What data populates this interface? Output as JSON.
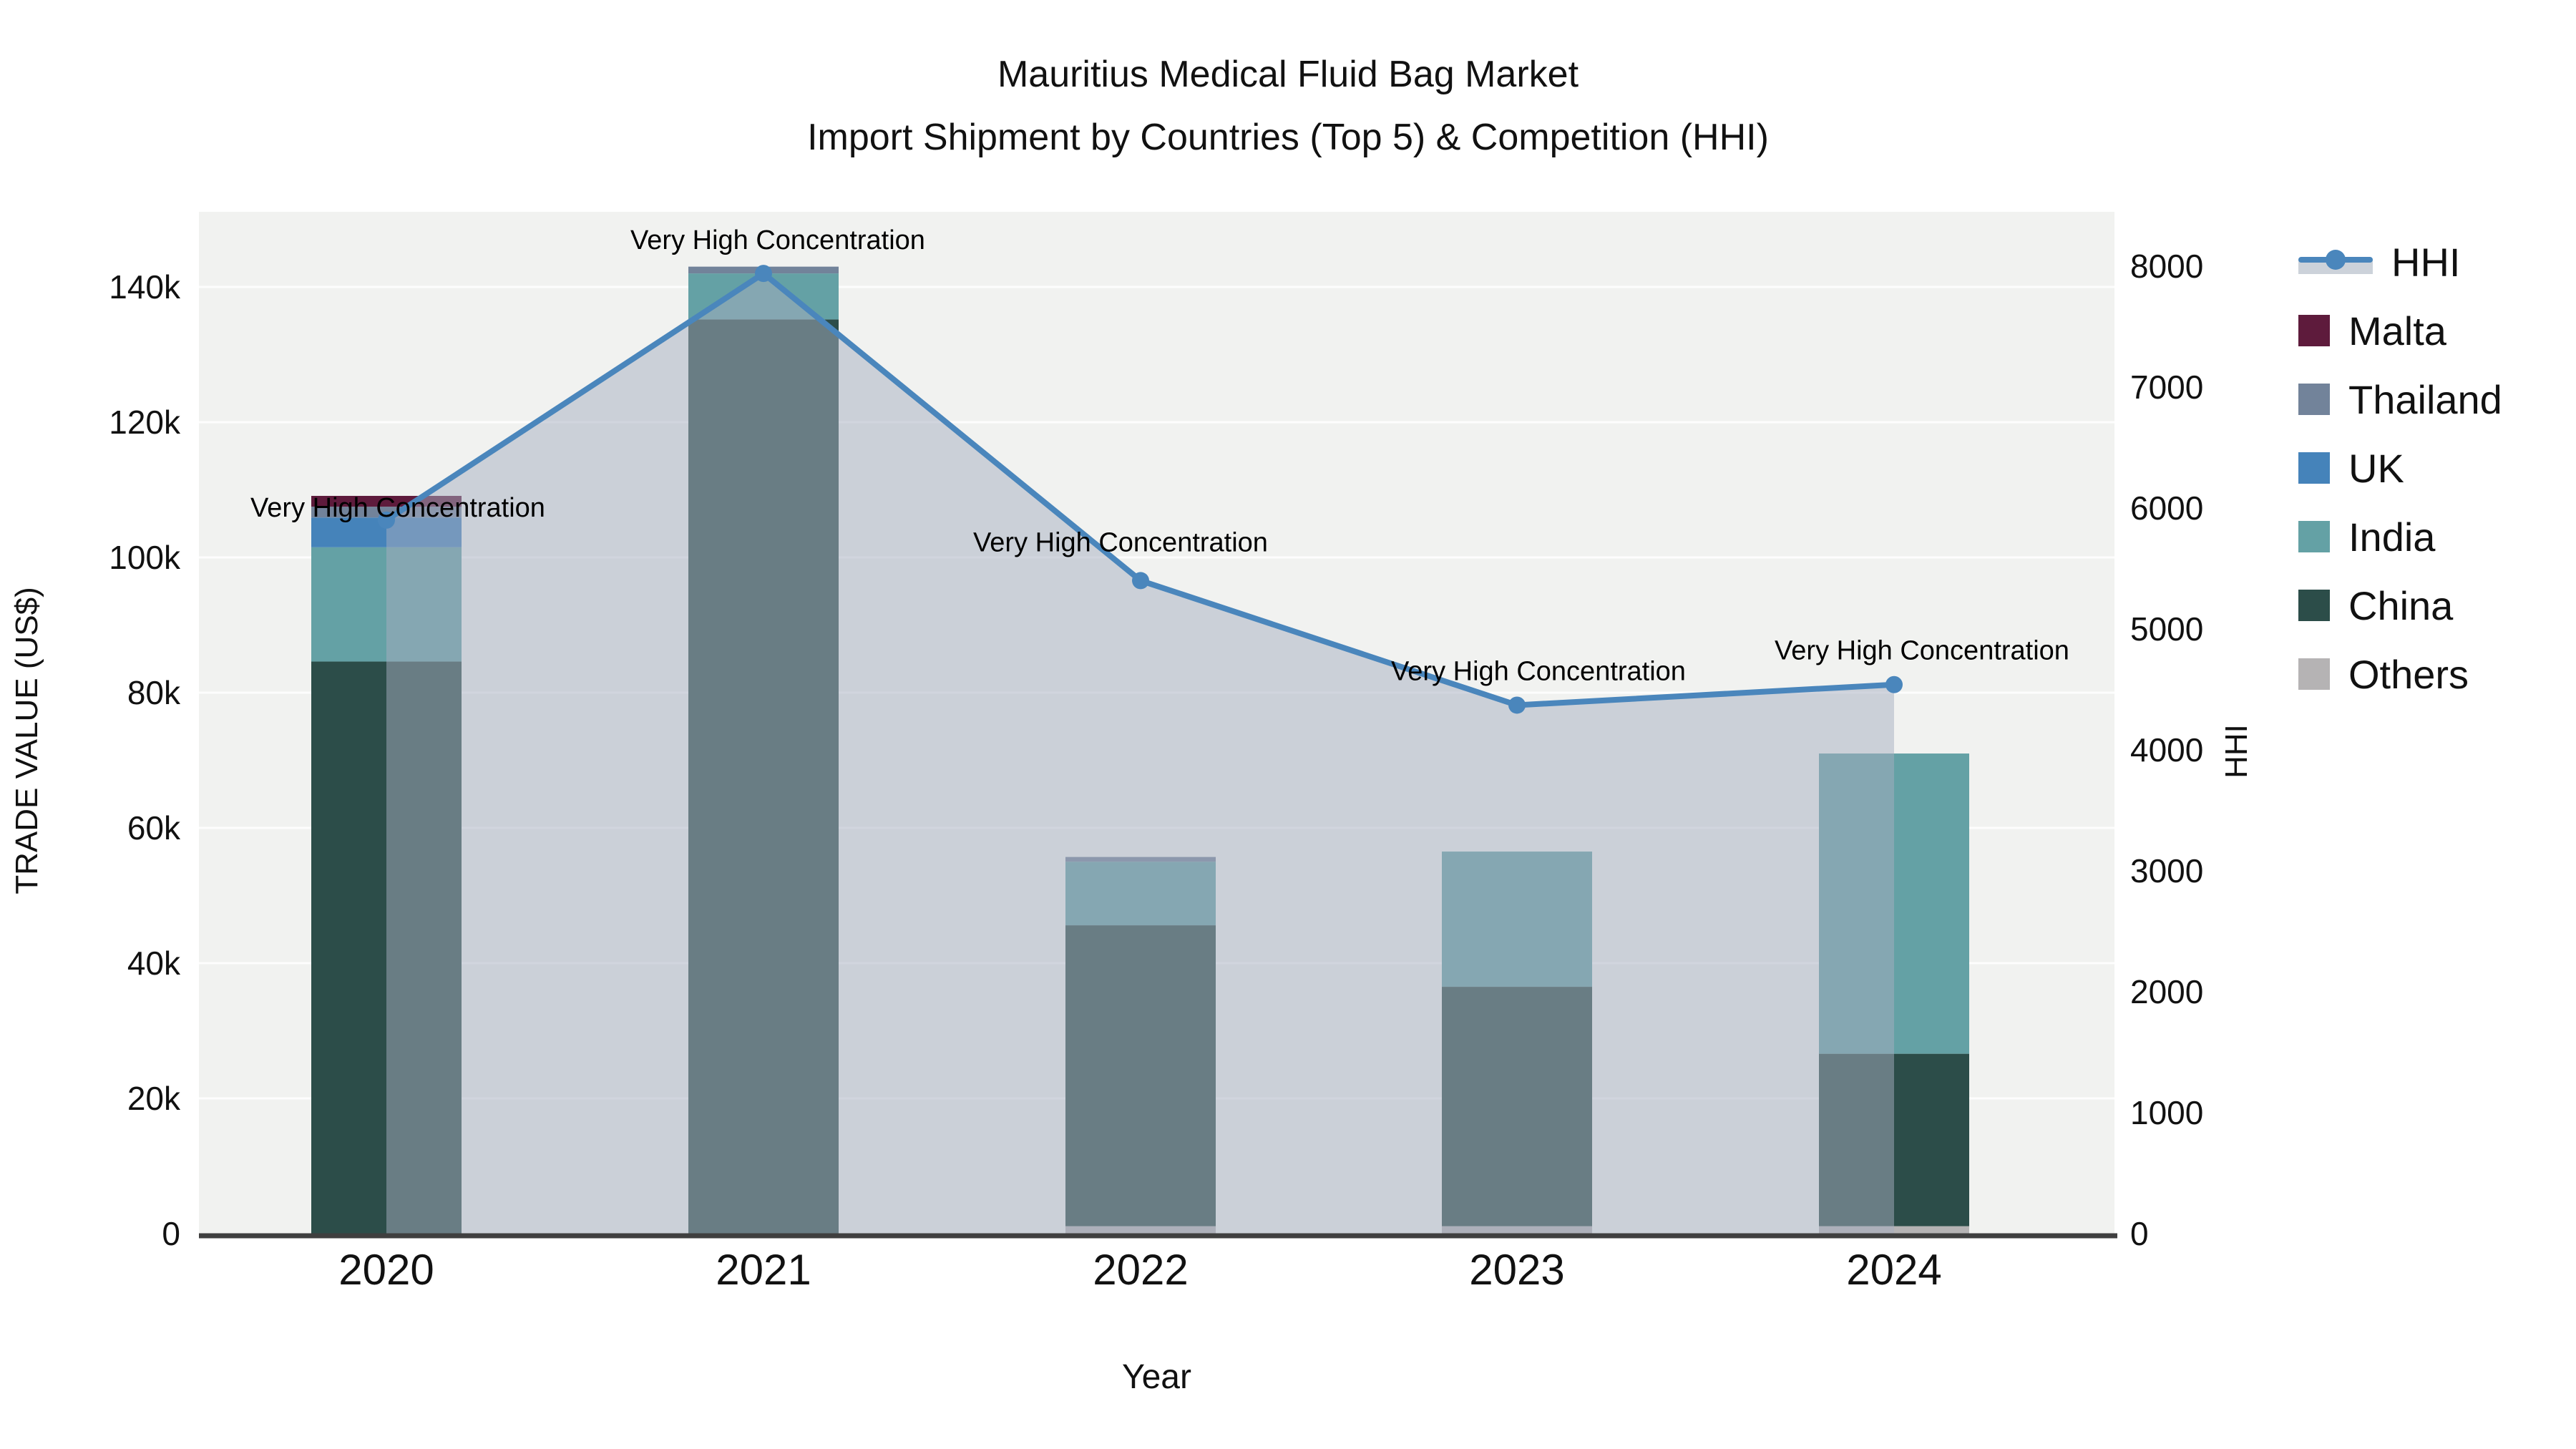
{
  "title": {
    "line1": "Mauritius Medical Fluid Bag Market",
    "line2": "Import Shipment by Countries (Top 5) & Competition (HHI)"
  },
  "axes": {
    "x": {
      "title": "Year",
      "tick_labels": [
        "2020",
        "2021",
        "2022",
        "2023",
        "2024"
      ]
    },
    "y_left": {
      "title": "TRADE VALUE (US$)",
      "tick_labels": [
        "0",
        "20k",
        "40k",
        "60k",
        "80k",
        "100k",
        "120k",
        "140k"
      ],
      "tick_values": [
        0,
        20000,
        40000,
        60000,
        80000,
        100000,
        120000,
        140000
      ]
    },
    "y_right": {
      "title": "HHI",
      "tick_labels": [
        "0",
        "1000",
        "2000",
        "3000",
        "4000",
        "5000",
        "6000",
        "7000",
        "8000"
      ],
      "tick_values": [
        0,
        1000,
        2000,
        3000,
        4000,
        5000,
        6000,
        7000,
        8000
      ]
    }
  },
  "legend": {
    "items": [
      {
        "id": "hhi",
        "label": "HHI",
        "type": "line",
        "color": "#4a86bc"
      },
      {
        "id": "malta",
        "label": "Malta",
        "type": "box",
        "color": "#5e1b3c"
      },
      {
        "id": "thailand",
        "label": "Thailand",
        "type": "box",
        "color": "#72839a"
      },
      {
        "id": "uk",
        "label": "UK",
        "type": "box",
        "color": "#4583ba"
      },
      {
        "id": "india",
        "label": "India",
        "type": "box",
        "color": "#64a1a5"
      },
      {
        "id": "china",
        "label": "China",
        "type": "box",
        "color": "#2c4d49"
      },
      {
        "id": "others",
        "label": "Others",
        "type": "box",
        "color": "#b5b3b4"
      }
    ]
  },
  "chart_data": {
    "type": "stacked-bar-with-line",
    "categories": [
      "2020",
      "2021",
      "2022",
      "2023",
      "2024"
    ],
    "bar_series": [
      {
        "name": "Others",
        "color": "#b5b3b4",
        "values": [
          0,
          0,
          1100,
          1100,
          1100
        ]
      },
      {
        "name": "China",
        "color": "#2c4d49",
        "values": [
          84600,
          135200,
          44500,
          35400,
          25500
        ]
      },
      {
        "name": "India",
        "color": "#64a1a5",
        "values": [
          16900,
          6800,
          9400,
          20000,
          44400
        ]
      },
      {
        "name": "UK",
        "color": "#4583ba",
        "values": [
          4400,
          0,
          0,
          0,
          0
        ]
      },
      {
        "name": "Thailand",
        "color": "#72839a",
        "values": [
          1600,
          1000,
          700,
          0,
          0
        ]
      },
      {
        "name": "Malta",
        "color": "#5e1b3c",
        "values": [
          1600,
          0,
          0,
          0,
          0
        ]
      }
    ],
    "line_series": {
      "name": "HHI",
      "color": "#4a86bc",
      "fill_color": "rgba(165,174,192,0.5)",
      "values": [
        5900,
        7940,
        5400,
        4370,
        4540
      ]
    },
    "annotations": [
      {
        "text": "Very High Concentration",
        "category": "2020"
      },
      {
        "text": "Very High Concentration",
        "category": "2021"
      },
      {
        "text": "Very High Concentration",
        "category": "2022"
      },
      {
        "text": "Very High Concentration",
        "category": "2023"
      },
      {
        "text": "Very High Concentration",
        "category": "2024"
      }
    ],
    "xlabel": "Year",
    "ylabel_left": "TRADE VALUE (US$)",
    "ylabel_right": "HHI",
    "ylim_left": [
      0,
      151000
    ],
    "ylim_right": [
      0,
      8540
    ],
    "grid": true,
    "legend_position": "right"
  },
  "colors": {
    "plot_background": "#f1f2f0",
    "gridline": "#fdfdfd",
    "axis_line": "#3f3f3f",
    "text": "#111111"
  }
}
